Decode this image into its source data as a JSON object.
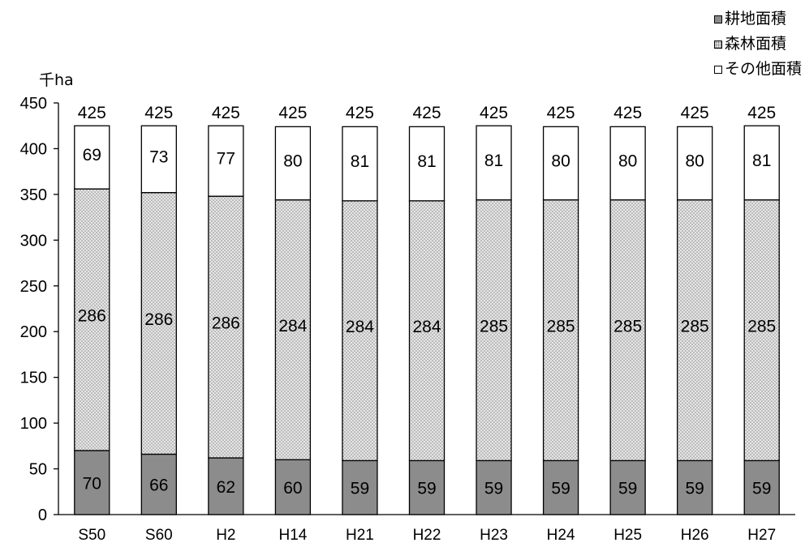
{
  "chart_data": {
    "type": "bar",
    "stacked": true,
    "unit_label": "千ha",
    "categories": [
      "S50",
      "S60",
      "H2",
      "H14",
      "H21",
      "H22",
      "H23",
      "H24",
      "H25",
      "H26",
      "H27"
    ],
    "series": [
      {
        "name": "耕地面積",
        "values": [
          70,
          66,
          62,
          60,
          59,
          59,
          59,
          59,
          59,
          59,
          59
        ],
        "color": "#8c8c8c",
        "pattern": "solid"
      },
      {
        "name": "森林面積",
        "values": [
          286,
          286,
          286,
          284,
          284,
          284,
          285,
          285,
          285,
          285,
          285
        ],
        "color": "#e6e6e6",
        "pattern": "dots"
      },
      {
        "name": "その他面積",
        "values": [
          69,
          73,
          77,
          80,
          81,
          81,
          81,
          80,
          80,
          80,
          81
        ],
        "color": "#ffffff",
        "pattern": "none"
      }
    ],
    "totals": [
      425,
      425,
      425,
      425,
      425,
      425,
      425,
      425,
      425,
      425,
      425
    ],
    "ylim": [
      0,
      450
    ],
    "yticks": [
      0,
      50,
      100,
      150,
      200,
      250,
      300,
      350,
      400,
      450
    ],
    "grid": false,
    "legend_position": "top-right"
  }
}
